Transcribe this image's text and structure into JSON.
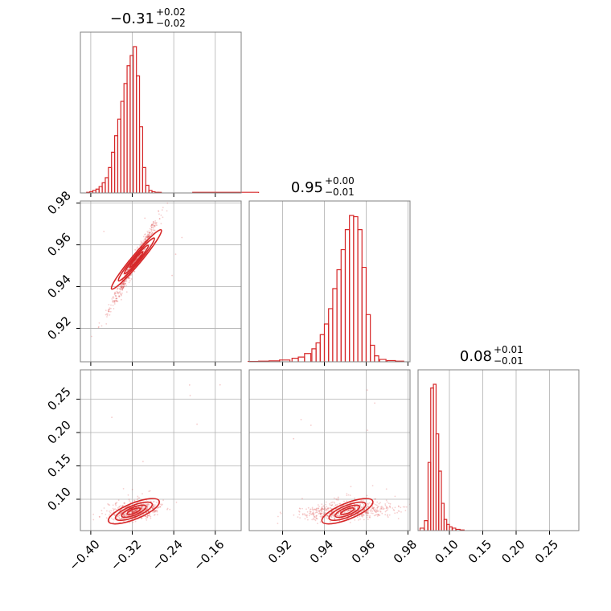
{
  "chart_data": {
    "type": "corner",
    "color": "#d62728",
    "parameters": [
      {
        "title_value": "−0.31",
        "title_plus": "+0.02",
        "title_minus": "−0.02",
        "range": [
          -0.42,
          -0.11
        ],
        "ticks": [
          -0.4,
          -0.32,
          -0.24,
          -0.16
        ],
        "tick_labels": [
          "−0.40",
          "−0.32",
          "−0.24",
          "−0.16"
        ]
      },
      {
        "title_value": "0.95",
        "title_plus": "+0.00",
        "title_minus": "−0.01",
        "range": [
          0.904,
          0.981
        ],
        "ticks": [
          0.92,
          0.94,
          0.96,
          0.98
        ],
        "tick_labels": [
          "0.92",
          "0.94",
          "0.96",
          "0.98"
        ]
      },
      {
        "title_value": "0.08",
        "title_plus": "+0.01",
        "title_minus": "−0.01",
        "range": [
          0.053,
          0.294
        ],
        "ticks": [
          0.1,
          0.15,
          0.2,
          0.25
        ],
        "tick_labels": [
          "0.10",
          "0.15",
          "0.20",
          "0.25"
        ]
      }
    ],
    "histograms": [
      {
        "param": 0,
        "bins": [
          {
            "x": -0.405,
            "count": 0.5
          },
          {
            "x": -0.399,
            "count": 1
          },
          {
            "x": -0.393,
            "count": 2
          },
          {
            "x": -0.387,
            "count": 3
          },
          {
            "x": -0.381,
            "count": 5
          },
          {
            "x": -0.375,
            "count": 8
          },
          {
            "x": -0.369,
            "count": 12
          },
          {
            "x": -0.363,
            "count": 20
          },
          {
            "x": -0.357,
            "count": 32
          },
          {
            "x": -0.351,
            "count": 45
          },
          {
            "x": -0.345,
            "count": 58
          },
          {
            "x": -0.339,
            "count": 72
          },
          {
            "x": -0.333,
            "count": 86
          },
          {
            "x": -0.327,
            "count": 100
          },
          {
            "x": -0.321,
            "count": 108
          },
          {
            "x": -0.315,
            "count": 115
          },
          {
            "x": -0.309,
            "count": 92
          },
          {
            "x": -0.303,
            "count": 52
          },
          {
            "x": -0.297,
            "count": 20
          },
          {
            "x": -0.291,
            "count": 6
          },
          {
            "x": -0.285,
            "count": 2
          },
          {
            "x": -0.279,
            "count": 1
          },
          {
            "x": -0.273,
            "count": 0.5
          },
          {
            "x": -0.267,
            "count": 0.5
          },
          {
            "x": -0.14,
            "count": 0.5
          }
        ]
      },
      {
        "param": 1,
        "bins": [
          {
            "x": 0.906,
            "count": 0.3
          },
          {
            "x": 0.911,
            "count": 0.5
          },
          {
            "x": 0.916,
            "count": 0.8
          },
          {
            "x": 0.921,
            "count": 1.5
          },
          {
            "x": 0.926,
            "count": 3
          },
          {
            "x": 0.929,
            "count": 4
          },
          {
            "x": 0.932,
            "count": 7
          },
          {
            "x": 0.935,
            "count": 11
          },
          {
            "x": 0.937,
            "count": 16
          },
          {
            "x": 0.939,
            "count": 23
          },
          {
            "x": 0.941,
            "count": 32
          },
          {
            "x": 0.943,
            "count": 45
          },
          {
            "x": 0.945,
            "count": 62
          },
          {
            "x": 0.947,
            "count": 78
          },
          {
            "x": 0.949,
            "count": 95
          },
          {
            "x": 0.951,
            "count": 112
          },
          {
            "x": 0.953,
            "count": 124
          },
          {
            "x": 0.955,
            "count": 123
          },
          {
            "x": 0.957,
            "count": 112
          },
          {
            "x": 0.959,
            "count": 80
          },
          {
            "x": 0.961,
            "count": 40
          },
          {
            "x": 0.963,
            "count": 14
          },
          {
            "x": 0.965,
            "count": 5
          },
          {
            "x": 0.968,
            "count": 2
          },
          {
            "x": 0.972,
            "count": 1
          },
          {
            "x": 0.976,
            "count": 0.5
          }
        ]
      },
      {
        "param": 2,
        "bins": [
          {
            "x": 0.059,
            "count": 2
          },
          {
            "x": 0.065,
            "count": 8
          },
          {
            "x": 0.07,
            "count": 55
          },
          {
            "x": 0.074,
            "count": 115
          },
          {
            "x": 0.078,
            "count": 118
          },
          {
            "x": 0.082,
            "count": 78
          },
          {
            "x": 0.086,
            "count": 48
          },
          {
            "x": 0.09,
            "count": 22
          },
          {
            "x": 0.094,
            "count": 9
          },
          {
            "x": 0.098,
            "count": 5
          },
          {
            "x": 0.102,
            "count": 3
          },
          {
            "x": 0.107,
            "count": 2
          },
          {
            "x": 0.113,
            "count": 1
          },
          {
            "x": 0.119,
            "count": 0.5
          }
        ]
      }
    ]
  }
}
